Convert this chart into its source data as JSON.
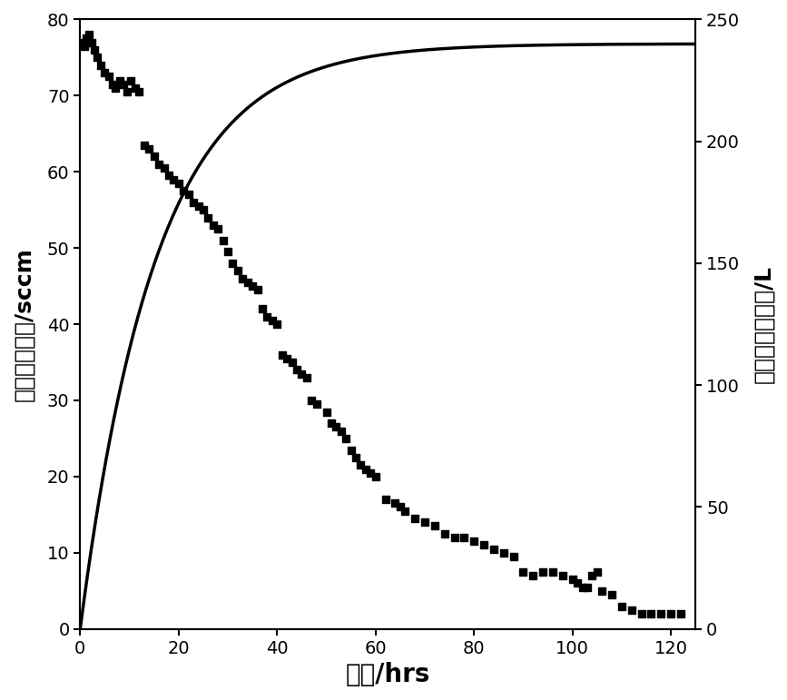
{
  "title": "",
  "xlabel": "时间/hrs",
  "ylabel_left": "气体流动速率/sccm",
  "ylabel_right": "产生气体总体积/L",
  "xlim": [
    0,
    125
  ],
  "ylim_left": [
    0,
    80
  ],
  "ylim_right": [
    0,
    250
  ],
  "xticks": [
    0,
    20,
    40,
    60,
    80,
    100,
    120
  ],
  "yticks_left": [
    0,
    10,
    20,
    30,
    40,
    50,
    60,
    70,
    80
  ],
  "yticks_right": [
    0,
    50,
    100,
    150,
    200,
    250
  ],
  "scatter_color": "#000000",
  "curve_color": "#000000",
  "background_color": "#ffffff",
  "marker": "s",
  "marker_size": 6,
  "line_width": 2.5,
  "scatter_x": [
    0.3,
    0.8,
    1.2,
    1.8,
    2.3,
    2.8,
    3.5,
    4.2,
    5.0,
    5.8,
    6.5,
    7.2,
    8.0,
    8.8,
    9.5,
    10.3,
    11.2,
    12.0,
    13.0,
    14.0,
    15.0,
    16.0,
    17.0,
    18.0,
    19.0,
    20.0,
    21.0,
    22.0,
    23.0,
    24.0,
    25.0,
    26.0,
    27.0,
    28.0,
    29.0,
    30.0,
    31.0,
    32.0,
    33.0,
    34.0,
    35.0,
    36.0,
    37.0,
    38.0,
    39.0,
    40.0,
    41.0,
    42.0,
    43.0,
    44.0,
    45.0,
    46.0,
    47.0,
    48.0,
    50.0,
    51.0,
    52.0,
    53.0,
    54.0,
    55.0,
    56.0,
    57.0,
    58.0,
    59.0,
    60.0,
    62.0,
    64.0,
    65.0,
    66.0,
    68.0,
    70.0,
    72.0,
    74.0,
    76.0,
    78.0,
    80.0,
    82.0,
    84.0,
    86.0,
    88.0,
    90.0,
    92.0,
    94.0,
    96.0,
    98.0,
    100.0,
    101.0,
    102.0,
    103.0,
    104.0,
    105.0,
    106.0,
    108.0,
    110.0,
    112.0,
    114.0,
    116.0,
    118.0,
    120.0,
    122.0
  ],
  "scatter_y": [
    77.0,
    76.5,
    77.5,
    78.0,
    77.0,
    76.0,
    75.0,
    74.0,
    73.0,
    72.5,
    71.5,
    71.0,
    72.0,
    71.5,
    70.5,
    72.0,
    71.0,
    70.5,
    63.5,
    63.0,
    62.0,
    61.0,
    60.5,
    59.5,
    59.0,
    58.5,
    57.5,
    57.0,
    56.0,
    55.5,
    55.0,
    54.0,
    53.0,
    52.5,
    51.0,
    49.5,
    48.0,
    47.0,
    46.0,
    45.5,
    45.0,
    44.5,
    42.0,
    41.0,
    40.5,
    40.0,
    36.0,
    35.5,
    35.0,
    34.0,
    33.5,
    33.0,
    30.0,
    29.5,
    28.5,
    27.0,
    26.5,
    26.0,
    25.0,
    23.5,
    22.5,
    21.5,
    21.0,
    20.5,
    20.0,
    17.0,
    16.5,
    16.0,
    15.5,
    14.5,
    14.0,
    13.5,
    12.5,
    12.0,
    12.0,
    11.5,
    11.0,
    10.5,
    10.0,
    9.5,
    7.5,
    7.0,
    7.5,
    7.5,
    7.0,
    6.5,
    6.0,
    5.5,
    5.5,
    7.0,
    7.5,
    5.0,
    4.5,
    3.0,
    2.5,
    2.0,
    2.0,
    2.0,
    2.0,
    2.0
  ],
  "curve_params": {
    "a": 240,
    "b": 0.065,
    "c": 15
  },
  "font_size_label": 18,
  "font_size_tick": 14
}
